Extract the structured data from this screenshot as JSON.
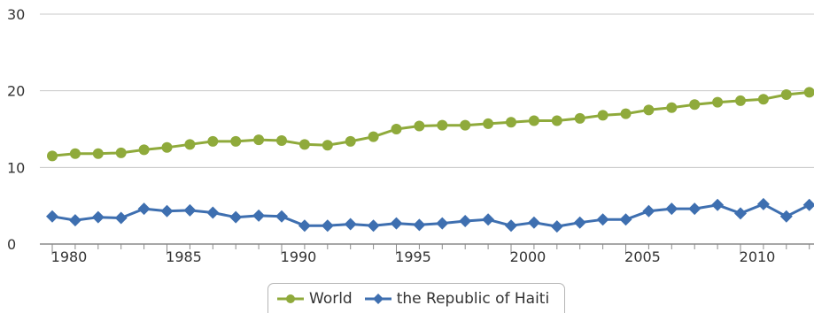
{
  "chart_data": {
    "type": "line",
    "title": "",
    "xlabel": "",
    "ylabel": "",
    "xlim": [
      1980,
      2013
    ],
    "ylim": [
      0,
      30
    ],
    "y_ticks": [
      0,
      10,
      20,
      30
    ],
    "x_ticks": [
      1980,
      1985,
      1990,
      1995,
      2000,
      2005,
      2010
    ],
    "grid": "horizontal",
    "legend_position": "bottom-center",
    "x": [
      1980,
      1981,
      1982,
      1983,
      1984,
      1985,
      1986,
      1987,
      1988,
      1989,
      1990,
      1991,
      1992,
      1993,
      1994,
      1995,
      1996,
      1997,
      1998,
      1999,
      2000,
      2001,
      2002,
      2003,
      2004,
      2005,
      2006,
      2007,
      2008,
      2009,
      2010,
      2011,
      2012,
      2013
    ],
    "series": [
      {
        "name": "World",
        "color": "#8faa3b",
        "marker": "circle",
        "values": [
          11.5,
          11.8,
          11.8,
          11.9,
          12.3,
          12.6,
          13.0,
          13.4,
          13.4,
          13.6,
          13.5,
          13.0,
          12.9,
          13.4,
          14.0,
          15.0,
          15.4,
          15.5,
          15.5,
          15.7,
          15.9,
          16.1,
          16.1,
          16.4,
          16.8,
          17.0,
          17.5,
          17.8,
          18.2,
          18.5,
          18.7,
          18.9,
          19.5,
          19.8
        ]
      },
      {
        "name": "the Republic of Haiti",
        "color": "#3e6fb0",
        "marker": "diamond",
        "values": [
          3.6,
          3.1,
          3.5,
          3.4,
          4.6,
          4.3,
          4.4,
          4.1,
          3.5,
          3.7,
          3.6,
          2.4,
          2.4,
          2.6,
          2.4,
          2.7,
          2.5,
          2.7,
          3.0,
          3.2,
          2.4,
          2.8,
          2.3,
          2.8,
          3.2,
          3.2,
          4.3,
          4.6,
          4.6,
          5.1,
          4.0,
          5.2,
          3.6,
          5.1
        ]
      }
    ]
  }
}
